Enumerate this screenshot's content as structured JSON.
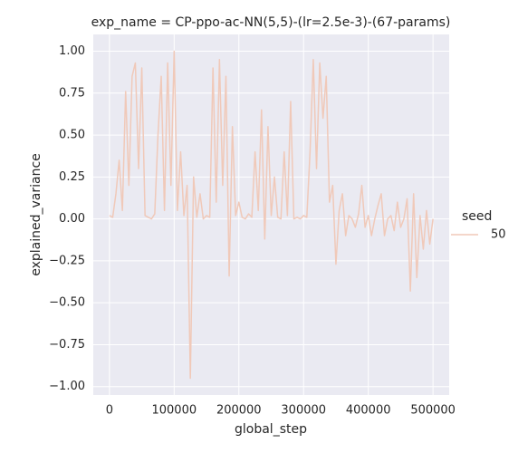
{
  "chart_data": {
    "type": "line",
    "title": "exp_name = CP-ppo-ac-NN(5,5)-(lr=2.5e-3)-(67-params)",
    "xlabel": "global_step",
    "ylabel": "explained_variance",
    "legend_title": "seed",
    "x": [
      0,
      5000,
      10000,
      15000,
      20000,
      25000,
      30000,
      35000,
      40000,
      45000,
      50000,
      55000,
      60000,
      65000,
      70000,
      75000,
      80000,
      85000,
      90000,
      95000,
      100000,
      105000,
      110000,
      115000,
      120000,
      125000,
      130000,
      135000,
      140000,
      145000,
      150000,
      155000,
      160000,
      165000,
      170000,
      175000,
      180000,
      185000,
      190000,
      195000,
      200000,
      205000,
      210000,
      215000,
      220000,
      225000,
      230000,
      235000,
      240000,
      245000,
      250000,
      255000,
      260000,
      265000,
      270000,
      275000,
      280000,
      285000,
      290000,
      295000,
      300000,
      305000,
      310000,
      315000,
      320000,
      325000,
      330000,
      335000,
      340000,
      345000,
      350000,
      355000,
      360000,
      365000,
      370000,
      375000,
      380000,
      385000,
      390000,
      395000,
      400000,
      405000,
      410000,
      415000,
      420000,
      425000,
      430000,
      435000,
      440000,
      445000,
      450000,
      455000,
      460000,
      465000,
      470000,
      475000,
      480000,
      485000,
      490000,
      495000,
      500000
    ],
    "series": [
      {
        "name": "50",
        "color": "#f0c9b9",
        "values": [
          0.02,
          0.01,
          0.15,
          0.35,
          0.05,
          0.76,
          0.2,
          0.85,
          0.93,
          0.3,
          0.9,
          0.02,
          0.01,
          0.0,
          0.03,
          0.5,
          0.85,
          0.05,
          0.93,
          0.2,
          1.0,
          0.05,
          0.4,
          0.02,
          0.2,
          -0.95,
          0.25,
          0.01,
          0.15,
          0.0,
          0.02,
          0.01,
          0.9,
          0.1,
          0.95,
          0.2,
          0.85,
          -0.34,
          0.55,
          0.02,
          0.1,
          0.01,
          0.0,
          0.03,
          0.01,
          0.4,
          0.05,
          0.65,
          -0.12,
          0.55,
          0.02,
          0.25,
          0.01,
          0.0,
          0.4,
          0.02,
          0.7,
          0.0,
          0.01,
          0.0,
          0.02,
          0.01,
          0.4,
          0.95,
          0.3,
          0.93,
          0.6,
          0.85,
          0.1,
          0.2,
          -0.27,
          0.05,
          0.15,
          -0.1,
          0.02,
          0.0,
          -0.05,
          0.03,
          0.2,
          -0.05,
          0.02,
          -0.1,
          0.0,
          0.08,
          0.15,
          -0.1,
          0.0,
          0.02,
          -0.07,
          0.1,
          -0.05,
          0.0,
          0.12,
          -0.43,
          0.15,
          -0.35,
          0.02,
          -0.18,
          0.05,
          -0.15,
          0.0
        ]
      }
    ],
    "xlim": [
      -25000,
      525000
    ],
    "xticks": [
      0,
      100000,
      200000,
      300000,
      400000,
      500000
    ],
    "ylim": [
      -1.05,
      1.1
    ],
    "yticks": [
      {
        "value": -1,
        "label": "−1.00"
      },
      {
        "value": -0.75,
        "label": "−0.75"
      },
      {
        "value": -0.5,
        "label": "−0.50"
      },
      {
        "value": -0.25,
        "label": "−0.25"
      },
      {
        "value": 0,
        "label": "0.00"
      },
      {
        "value": 0.25,
        "label": "0.25"
      },
      {
        "value": 0.5,
        "label": "0.50"
      },
      {
        "value": 0.75,
        "label": "0.75"
      },
      {
        "value": 1,
        "label": "1.00"
      }
    ],
    "grid": true
  }
}
